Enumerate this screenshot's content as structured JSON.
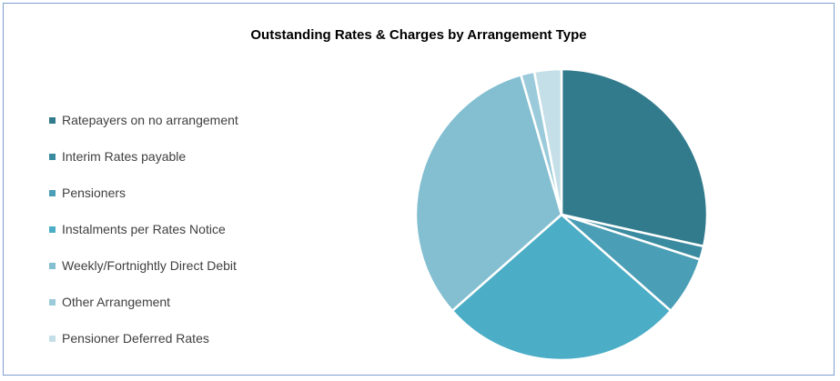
{
  "chart_data": {
    "type": "pie",
    "title": "Outstanding Rates & Charges by Arrangement Type",
    "legend_position": "left",
    "start_angle_deg": 0,
    "direction": "clockwise",
    "slices": [
      {
        "label": "Ratepayers on no arrangement",
        "value": 28.5,
        "color": "#327b8c"
      },
      {
        "label": "Interim Rates payable",
        "value": 1.5,
        "color": "#3a8ba0"
      },
      {
        "label": "Pensioners",
        "value": 6.5,
        "color": "#4a9eb6"
      },
      {
        "label": "Instalments per Rates Notice",
        "value": 27.0,
        "color": "#4badc6"
      },
      {
        "label": "Weekly/Fortnightly Direct Debit",
        "value": 32.0,
        "color": "#83bfd1"
      },
      {
        "label": "Other Arrangement",
        "value": 1.5,
        "color": "#9bcbdb"
      },
      {
        "label": "Pensioner Deferred Rates",
        "value": 3.0,
        "color": "#c5dfe8"
      }
    ]
  }
}
